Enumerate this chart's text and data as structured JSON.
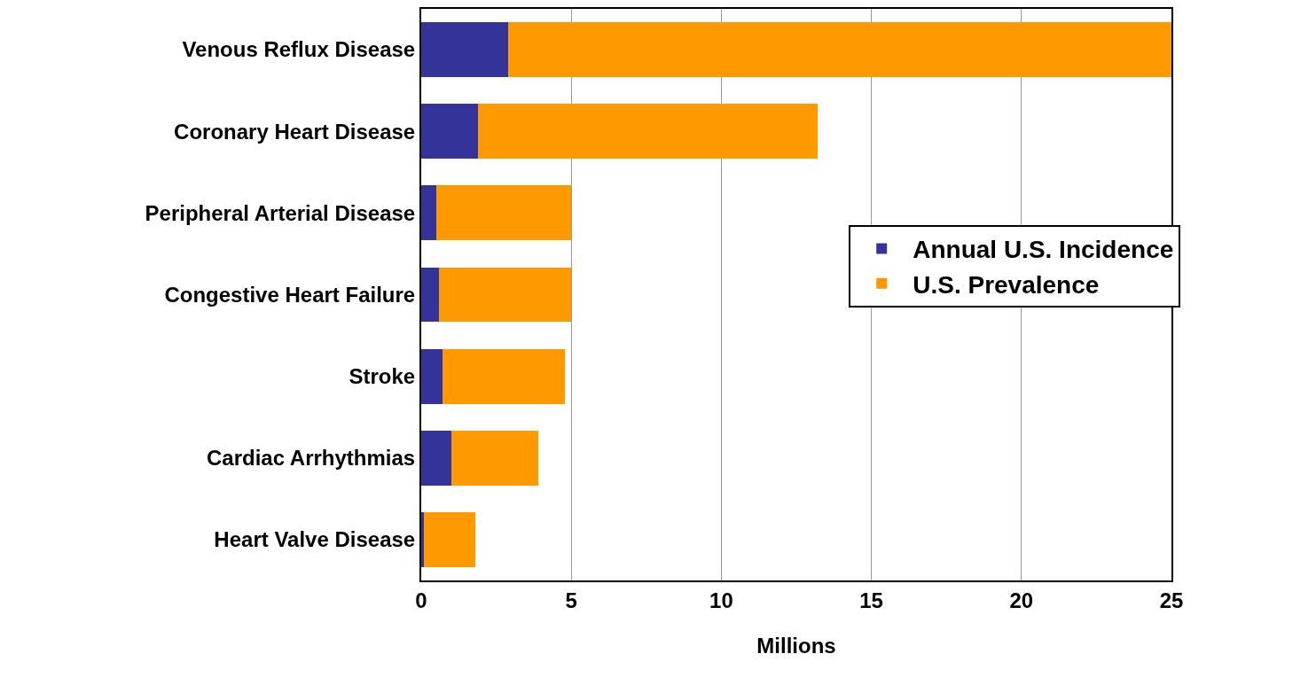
{
  "chart_data": {
    "type": "bar",
    "orientation": "horizontal",
    "stacked": true,
    "xlabel": "Millions",
    "categories": [
      "Venous Reflux Disease",
      "Coronary Heart Disease",
      "Peripheral Arterial Disease",
      "Congestive Heart Failure",
      "Stroke",
      "Cardiac Arrhythmias",
      "Heart Valve Disease"
    ],
    "series": [
      {
        "name": "Annual U.S. Incidence",
        "color": "#333399",
        "values": [
          2.9,
          1.9,
          0.5,
          0.6,
          0.7,
          1.0,
          0.1
        ]
      },
      {
        "name": "U.S. Prevalence",
        "color": "#ff9900",
        "values": [
          22.1,
          11.3,
          4.5,
          4.4,
          4.1,
          2.9,
          1.7
        ]
      }
    ],
    "xlim": [
      0,
      25
    ],
    "xticks": [
      0,
      5,
      10,
      15,
      20,
      25
    ],
    "grid": "x",
    "legend": "right"
  }
}
